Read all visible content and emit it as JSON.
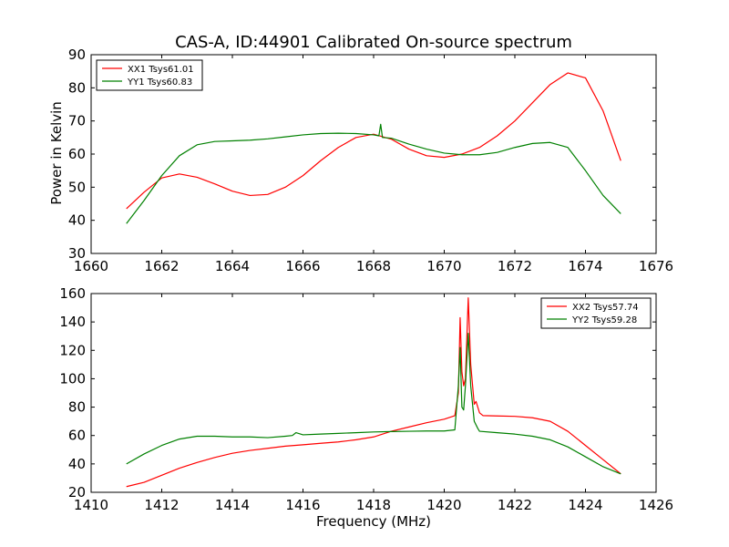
{
  "figure": {
    "title": "CAS-A, ID:44901 Calibrated On-source spectrum",
    "xlabel": "Frequency (MHz)",
    "ylabel": "Power in Kelvin"
  },
  "chart_data": [
    {
      "type": "line",
      "title": "CAS-A, ID:44901 Calibrated On-source spectrum",
      "ylabel": "Power in Kelvin",
      "xlabel": "",
      "xlim": [
        1660,
        1676
      ],
      "ylim": [
        30,
        90
      ],
      "xticks": [
        1660,
        1662,
        1664,
        1666,
        1668,
        1670,
        1672,
        1674,
        1676
      ],
      "yticks": [
        30,
        40,
        50,
        60,
        70,
        80,
        90
      ],
      "grid": false,
      "legend_position": "top-left",
      "series": [
        {
          "name": "XX1 Tsys61.01",
          "color": "#ff0000",
          "x": [
            1661.0,
            1661.5,
            1662.0,
            1662.5,
            1663.0,
            1663.5,
            1664.0,
            1664.5,
            1665.0,
            1665.5,
            1666.0,
            1666.5,
            1667.0,
            1667.5,
            1668.0,
            1668.5,
            1669.0,
            1669.5,
            1670.0,
            1670.5,
            1671.0,
            1671.5,
            1672.0,
            1672.5,
            1673.0,
            1673.5,
            1674.0,
            1674.5,
            1675.0
          ],
          "y": [
            43.5,
            48.5,
            52.8,
            54.0,
            53.0,
            51.0,
            48.8,
            47.5,
            47.8,
            50.0,
            53.5,
            58.0,
            62.0,
            65.0,
            66.0,
            64.5,
            61.5,
            59.5,
            59.0,
            60.0,
            62.0,
            65.5,
            70.0,
            75.5,
            81.0,
            84.5,
            83.0,
            73.0,
            58.0
          ]
        },
        {
          "name": "YY1 Tsys60.83",
          "color": "#008000",
          "x": [
            1661.0,
            1661.5,
            1662.0,
            1662.5,
            1663.0,
            1663.5,
            1664.0,
            1664.5,
            1665.0,
            1665.5,
            1666.0,
            1666.5,
            1667.0,
            1667.5,
            1668.0,
            1668.15,
            1668.2,
            1668.25,
            1668.5,
            1669.0,
            1669.5,
            1670.0,
            1670.5,
            1671.0,
            1671.5,
            1672.0,
            1672.5,
            1673.0,
            1673.5,
            1674.0,
            1674.5,
            1675.0
          ],
          "y": [
            39.0,
            46.0,
            53.5,
            59.5,
            62.8,
            63.8,
            64.0,
            64.2,
            64.6,
            65.2,
            65.8,
            66.2,
            66.3,
            66.2,
            65.8,
            65.5,
            69.0,
            65.0,
            64.8,
            63.0,
            61.5,
            60.3,
            59.8,
            59.8,
            60.5,
            62.0,
            63.2,
            63.5,
            62.0,
            55.0,
            47.5,
            42.0
          ]
        }
      ]
    },
    {
      "type": "line",
      "title": "",
      "xlabel": "Frequency (MHz)",
      "ylabel": "",
      "xlim": [
        1410,
        1426
      ],
      "ylim": [
        20,
        160
      ],
      "xticks": [
        1410,
        1412,
        1414,
        1416,
        1418,
        1420,
        1422,
        1424,
        1426
      ],
      "yticks": [
        20,
        40,
        60,
        80,
        100,
        120,
        140,
        160
      ],
      "grid": false,
      "legend_position": "top-right",
      "series": [
        {
          "name": "XX2 Tsys57.74",
          "color": "#ff0000",
          "x": [
            1411.0,
            1411.5,
            1412.0,
            1412.5,
            1413.0,
            1413.5,
            1414.0,
            1414.5,
            1415.0,
            1415.5,
            1416.0,
            1416.5,
            1417.0,
            1417.5,
            1418.0,
            1418.5,
            1419.0,
            1419.5,
            1420.0,
            1420.3,
            1420.4,
            1420.45,
            1420.5,
            1420.55,
            1420.6,
            1420.68,
            1420.75,
            1420.85,
            1420.9,
            1420.95,
            1421.0,
            1421.1,
            1421.5,
            1422.0,
            1422.5,
            1423.0,
            1423.5,
            1424.0,
            1424.5,
            1425.0
          ],
          "y": [
            24.0,
            27.0,
            32.0,
            37.0,
            41.0,
            44.5,
            47.5,
            49.5,
            51.0,
            52.5,
            53.5,
            54.5,
            55.5,
            57.0,
            59.0,
            63.0,
            66.0,
            69.0,
            71.5,
            74.0,
            90.0,
            143.0,
            105.0,
            95.0,
            100.0,
            157.0,
            110.0,
            82.0,
            84.0,
            80.0,
            76.0,
            74.0,
            73.8,
            73.5,
            72.5,
            70.0,
            63.0,
            53.0,
            43.0,
            33.0
          ]
        },
        {
          "name": "YY2 Tsys59.28",
          "color": "#008000",
          "x": [
            1411.0,
            1411.5,
            1412.0,
            1412.5,
            1413.0,
            1413.5,
            1414.0,
            1414.5,
            1415.0,
            1415.5,
            1415.7,
            1415.8,
            1416.0,
            1416.5,
            1417.0,
            1417.5,
            1418.0,
            1418.5,
            1419.0,
            1419.5,
            1420.0,
            1420.3,
            1420.4,
            1420.45,
            1420.5,
            1420.55,
            1420.6,
            1420.68,
            1420.75,
            1420.85,
            1420.95,
            1421.0,
            1421.5,
            1422.0,
            1422.5,
            1423.0,
            1423.5,
            1424.0,
            1424.5,
            1425.0
          ],
          "y": [
            40.0,
            47.0,
            53.0,
            57.5,
            59.5,
            59.5,
            59.0,
            59.0,
            58.5,
            59.5,
            60.0,
            62.0,
            60.5,
            61.0,
            61.5,
            62.0,
            62.5,
            62.8,
            63.0,
            63.2,
            63.2,
            64.0,
            95.0,
            122.0,
            80.0,
            78.0,
            95.0,
            132.0,
            95.0,
            70.0,
            65.0,
            63.0,
            62.0,
            61.0,
            59.5,
            57.0,
            52.0,
            45.0,
            38.0,
            33.0
          ]
        }
      ]
    }
  ]
}
